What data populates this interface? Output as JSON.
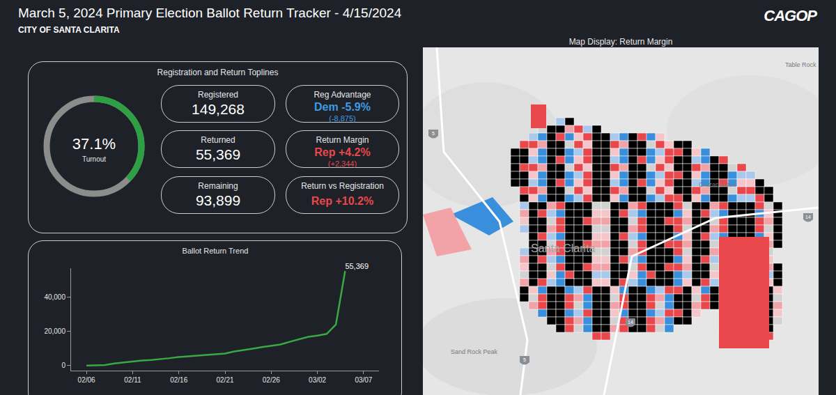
{
  "header": {
    "title": "March 5, 2024 Primary Election Ballot Return Tracker - 4/15/2024",
    "subtitle": "CITY OF SANTA CLARITA",
    "logo": "CAGOP"
  },
  "toplines": {
    "title": "Registration and Return Toplines",
    "turnout": {
      "value": 37.1,
      "label": "37.1%",
      "caption": "Turnout"
    },
    "counts": [
      {
        "label": "Registered",
        "value": "149,268"
      },
      {
        "label": "Returned",
        "value": "55,369"
      },
      {
        "label": "Remaining",
        "value": "93,899"
      }
    ],
    "margins": [
      {
        "label": "Reg Advantage",
        "value": "Dem -5.9%",
        "detail": "(-8,875)",
        "color": "#3d9be3"
      },
      {
        "label": "Return Margin",
        "value": "Rep +4.2%",
        "detail": "(+2,344)",
        "color": "#e8474b"
      },
      {
        "label": "Return vs Registration",
        "value": "Rep +10.2%",
        "color": "#e8474b"
      }
    ]
  },
  "map": {
    "title": "Map Display: Return Margin",
    "labels": [
      {
        "text": "Table Rock",
        "kind": "place"
      },
      {
        "text": "Cruzan Mesa",
        "kind": "place"
      },
      {
        "text": "Santa Clarita",
        "kind": "city"
      },
      {
        "text": "Sand Rock Peak",
        "kind": "place"
      },
      {
        "text": "5",
        "kind": "shield"
      },
      {
        "text": "14",
        "kind": "shield"
      },
      {
        "text": "5",
        "kind": "shield"
      },
      {
        "text": "14",
        "kind": "shield"
      }
    ]
  },
  "chart_data": {
    "type": "line",
    "title": "Ballot Return Trend",
    "categories": [
      "02/06",
      null,
      null,
      null,
      null,
      "02/11",
      null,
      null,
      null,
      null,
      "02/16",
      null,
      null,
      null,
      null,
      "02/21",
      null,
      null,
      null,
      null,
      "02/26",
      null,
      null,
      null,
      null,
      "03/02",
      null,
      null,
      null,
      null,
      "03/07"
    ],
    "series": [
      {
        "name": "Returned",
        "color": "#3aa843",
        "values": [
          0,
          100,
          300,
          1200,
          1800,
          2400,
          2900,
          3200,
          3600,
          4300,
          5000,
          5400,
          5800,
          6200,
          6600,
          7000,
          8200,
          9200,
          9900,
          10800,
          11700,
          12300,
          13900,
          15300,
          16800,
          17500,
          18500,
          24000,
          55369,
          null,
          null
        ],
        "value_labels": [
          null,
          null,
          null,
          null,
          null,
          null,
          null,
          null,
          null,
          null,
          null,
          null,
          null,
          null,
          null,
          null,
          null,
          null,
          null,
          null,
          null,
          null,
          null,
          null,
          null,
          null,
          null,
          null,
          "55,369",
          null,
          null
        ]
      }
    ],
    "ylim": [
      -3000,
      57000
    ],
    "yticks": [
      0,
      {
        "value": 20000,
        "label": "20,000"
      },
      {
        "value": 40000,
        "label": "40,000"
      }
    ],
    "grid": false,
    "data_labels": true,
    "marker": "none",
    "line_style": "solid"
  }
}
